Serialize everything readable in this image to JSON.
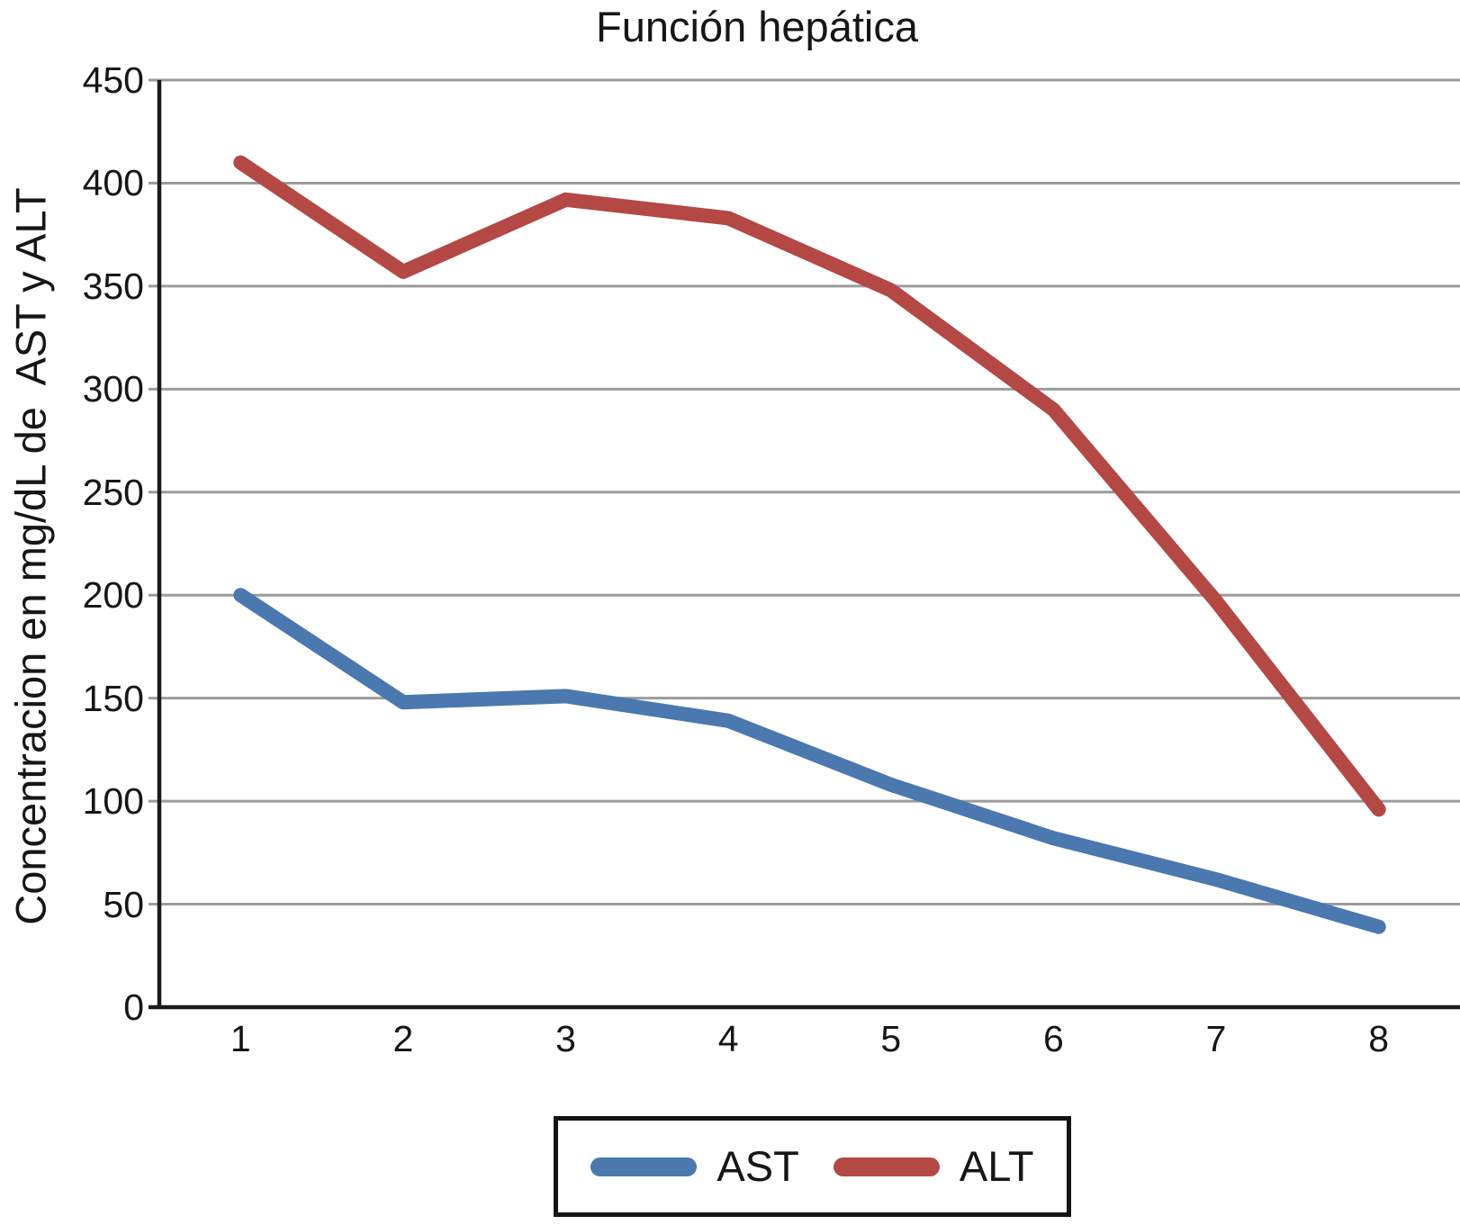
{
  "chart_data": {
    "type": "line",
    "title": "Función hepática",
    "ylabel": "Concentracion en mg/dL de  AST y ALT",
    "xlabel": "",
    "categories": [
      "1",
      "2",
      "3",
      "4",
      "5",
      "6",
      "7",
      "8"
    ],
    "series": [
      {
        "name": "AST",
        "color": "#4a78af",
        "values": [
          200,
          148,
          151,
          139,
          108,
          82,
          62,
          39
        ]
      },
      {
        "name": "ALT",
        "color": "#b34845",
        "values": [
          410,
          357,
          392,
          383,
          348,
          290,
          197,
          96
        ]
      }
    ],
    "ylim": [
      0,
      450
    ],
    "yticks": [
      0,
      50,
      100,
      150,
      200,
      250,
      300,
      350,
      400,
      450
    ],
    "grid": "horizontal-only",
    "gridline_color": "#9b9b9b",
    "axis_color": "#1a1a1a",
    "line_width": 16,
    "legend_position": "bottom",
    "legend_border_color": "#141414"
  }
}
